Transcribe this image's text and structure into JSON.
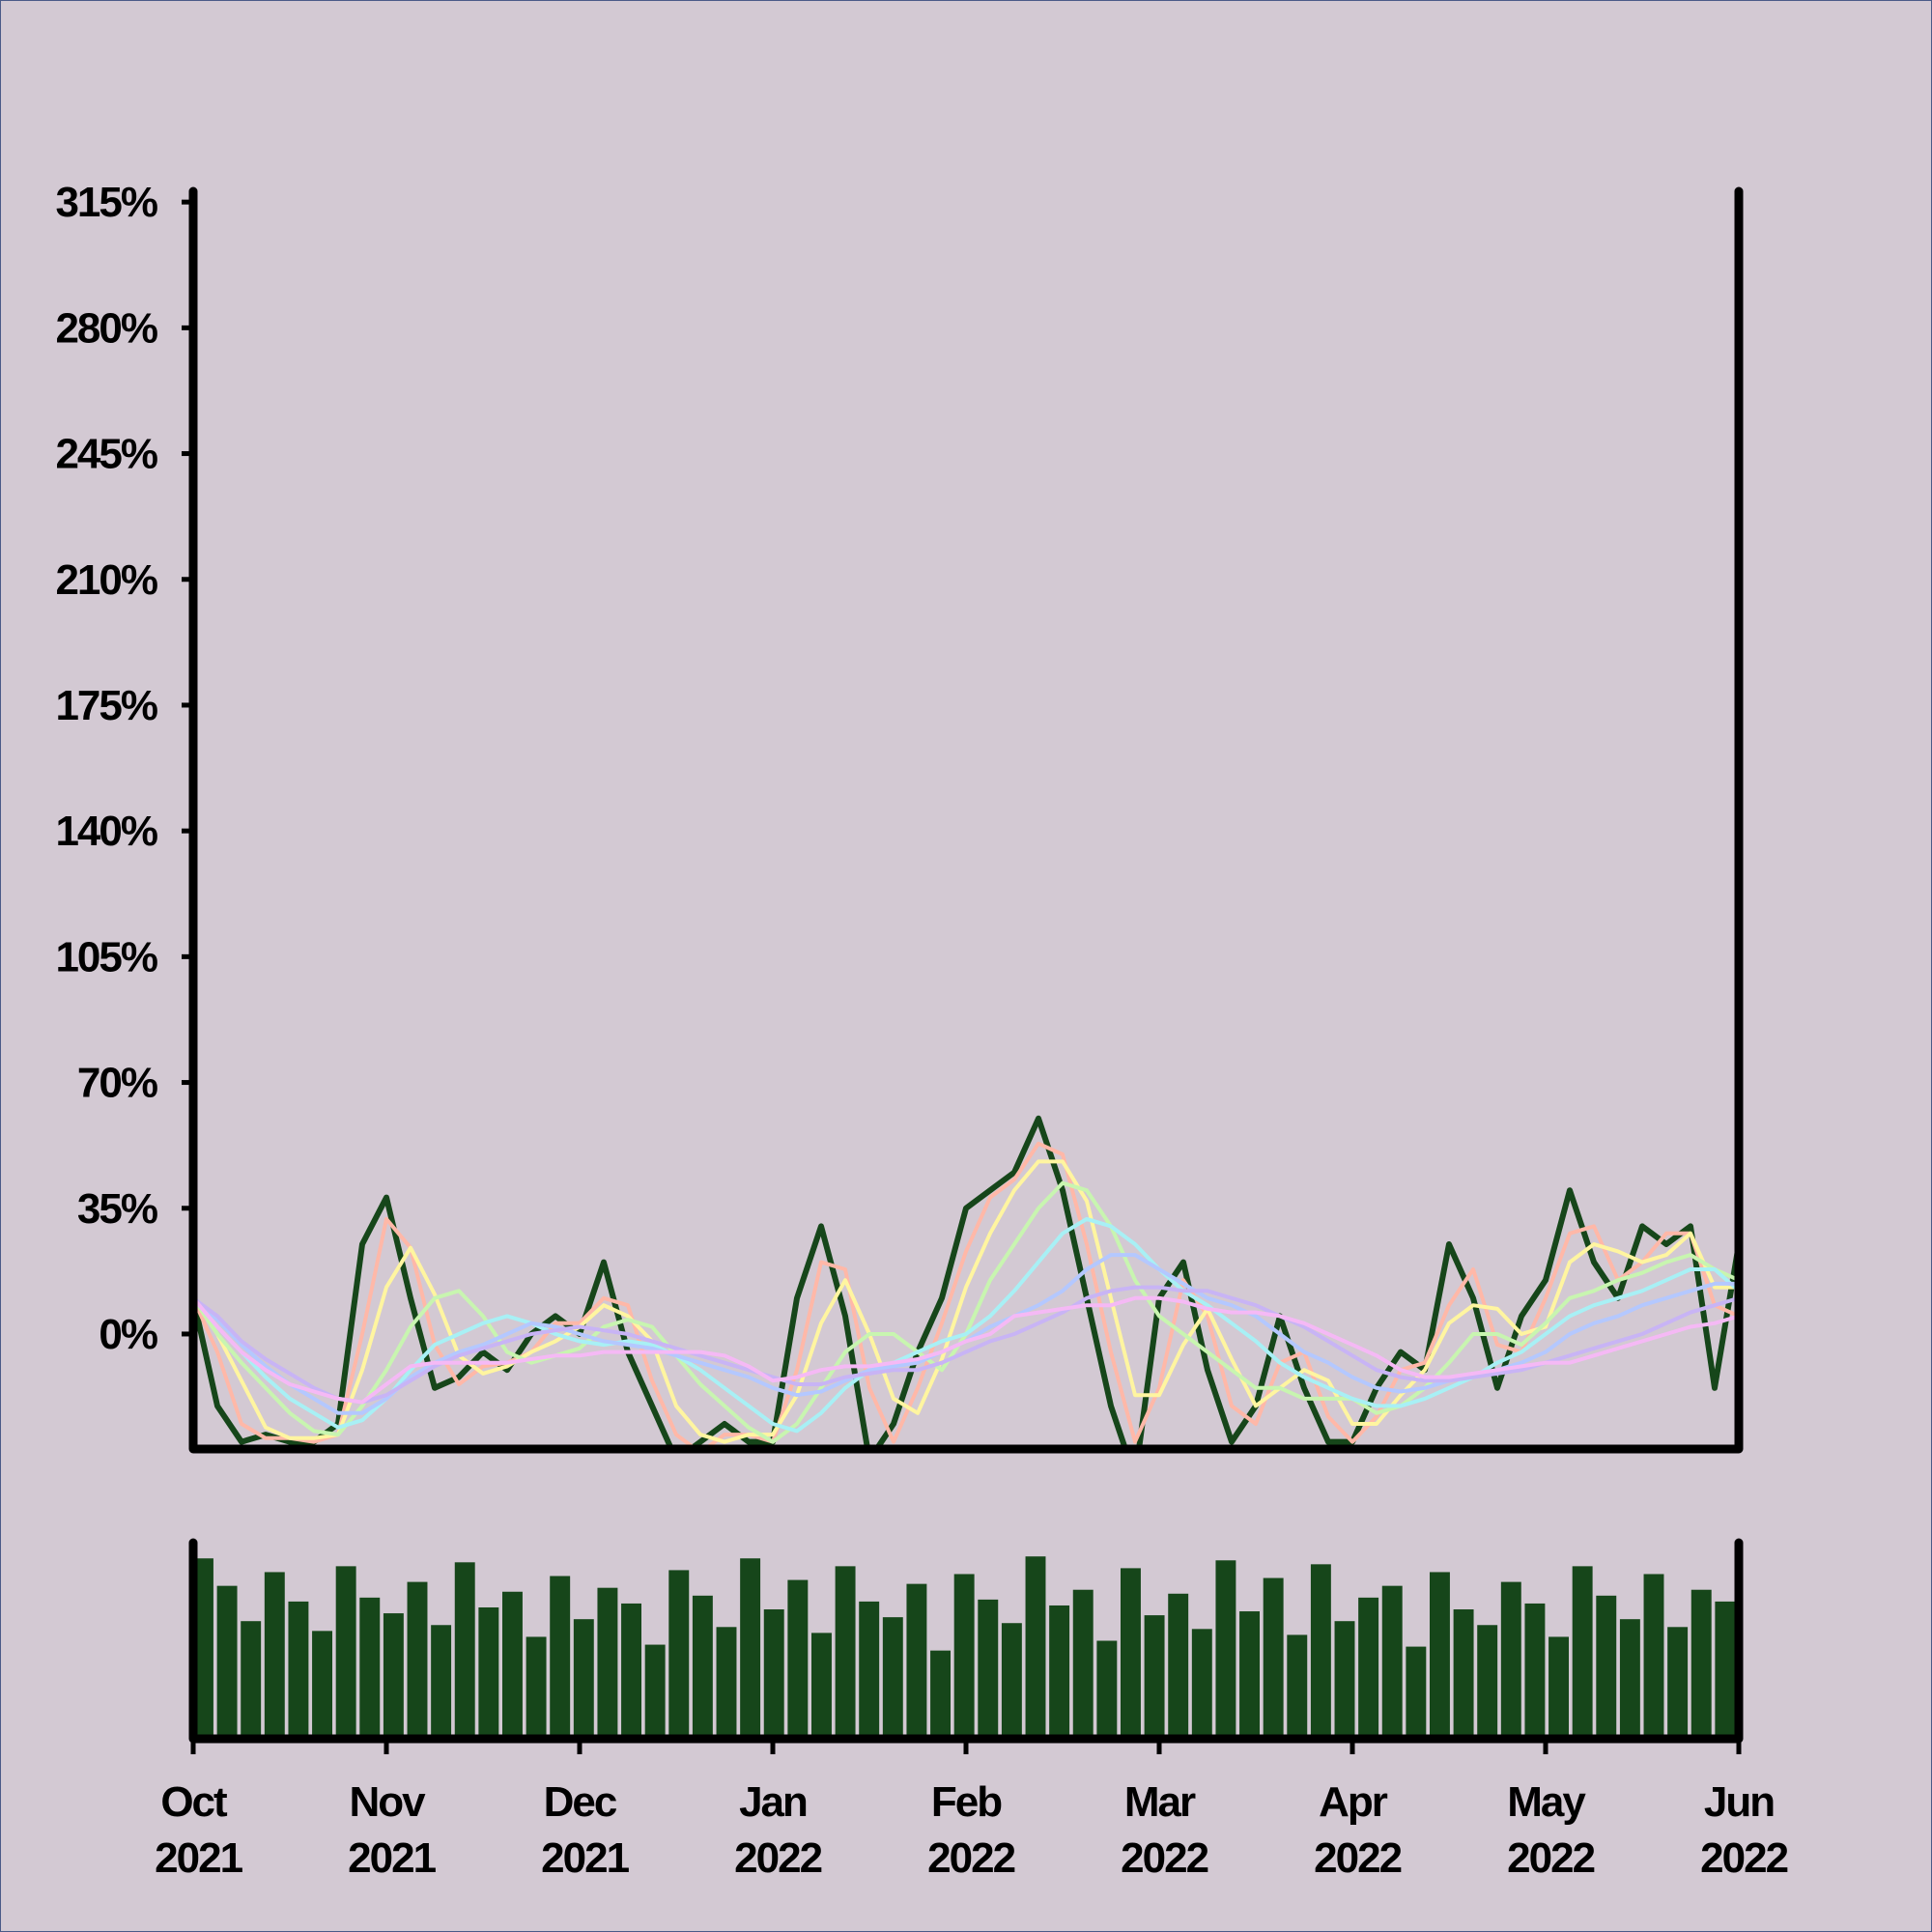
{
  "chart_data": {
    "type": "line",
    "categories": [
      "Oct 2021",
      null,
      null,
      null,
      null,
      null,
      null,
      null,
      "Nov 2021",
      null,
      null,
      null,
      null,
      null,
      null,
      null,
      "Dec 2021",
      null,
      null,
      null,
      null,
      null,
      null,
      null,
      "Jan 2022",
      null,
      null,
      null,
      null,
      null,
      null,
      null,
      "Feb 2022",
      null,
      null,
      null,
      null,
      null,
      null,
      null,
      "Mar 2022",
      null,
      null,
      null,
      null,
      null,
      null,
      null,
      "Apr 2022",
      null,
      null,
      null,
      null,
      null,
      null,
      null,
      "May 2022",
      null,
      null,
      null,
      null,
      null,
      null,
      null,
      "Jun 2022"
    ],
    "ylim": [
      -32,
      318
    ],
    "yticks": [
      {
        "value": 0,
        "label": "0%"
      },
      {
        "value": 35,
        "label": "35%"
      },
      {
        "value": 70,
        "label": "70%"
      },
      {
        "value": 105,
        "label": "105%"
      },
      {
        "value": 140,
        "label": "140%"
      },
      {
        "value": 175,
        "label": "175%"
      },
      {
        "value": 210,
        "label": "210%"
      },
      {
        "value": 245,
        "label": "245%"
      },
      {
        "value": 280,
        "label": "280%"
      },
      {
        "value": 315,
        "label": "315%"
      }
    ],
    "grid": false,
    "series": [
      {
        "color": "#ffb8a8",
        "values": [
          10,
          -5,
          -25,
          -29,
          -29,
          -30,
          -28,
          0,
          32,
          24,
          -3,
          -14,
          -9,
          -8,
          -5,
          3,
          3,
          10,
          8,
          -13,
          -28,
          -33,
          -28,
          -28,
          -30,
          -10,
          20,
          18,
          -15,
          -30,
          -15,
          3,
          23,
          38,
          43,
          53,
          50,
          25,
          -5,
          -30,
          -15,
          15,
          5,
          -20,
          -25,
          -8,
          -5,
          -23,
          -30,
          -23,
          -10,
          -8,
          8,
          18,
          -3,
          -5,
          10,
          28,
          30,
          15,
          20,
          28,
          28,
          8,
          5
        ]
      },
      {
        "color": "#fff5a0",
        "values": [
          10,
          0,
          -13,
          -26,
          -29,
          -29,
          -28,
          -10,
          13,
          24,
          11,
          -6,
          -11,
          -9,
          -5,
          -2,
          2,
          8,
          5,
          -2,
          -20,
          -28,
          -30,
          -28,
          -28,
          -17,
          3,
          15,
          0,
          -18,
          -22,
          -7,
          13,
          28,
          40,
          48,
          48,
          37,
          10,
          -17,
          -17,
          -3,
          7,
          -7,
          -20,
          -15,
          -10,
          -13,
          -25,
          -25,
          -17,
          -10,
          3,
          8,
          7,
          0,
          2,
          20,
          25,
          23,
          20,
          22,
          28,
          13,
          13
        ]
      },
      {
        "color": "#c8f5b0",
        "values": [
          10,
          0,
          -8,
          -15,
          -22,
          -27,
          -28,
          -20,
          -10,
          2,
          10,
          12,
          5,
          -5,
          -8,
          -6,
          -4,
          2,
          4,
          2,
          -6,
          -14,
          -20,
          -26,
          -30,
          -25,
          -15,
          -5,
          0,
          0,
          -5,
          -10,
          0,
          15,
          25,
          35,
          42,
          40,
          30,
          15,
          5,
          0,
          -5,
          -10,
          -15,
          -15,
          -18,
          -18,
          -18,
          -22,
          -20,
          -15,
          -8,
          0,
          0,
          -3,
          3,
          10,
          12,
          15,
          17,
          20,
          22,
          18,
          15
        ]
      },
      {
        "color": "#a8f0f5",
        "values": [
          10,
          2,
          -5,
          -12,
          -18,
          -22,
          -26,
          -24,
          -18,
          -10,
          -3,
          0,
          3,
          5,
          3,
          0,
          -2,
          -3,
          -2,
          -3,
          -6,
          -10,
          -15,
          -20,
          -25,
          -27,
          -22,
          -15,
          -10,
          -8,
          -5,
          -2,
          0,
          5,
          12,
          20,
          28,
          32,
          30,
          25,
          18,
          12,
          8,
          3,
          -2,
          -8,
          -12,
          -15,
          -18,
          -20,
          -20,
          -18,
          -15,
          -12,
          -8,
          -5,
          0,
          5,
          8,
          10,
          12,
          15,
          18,
          18,
          12
        ]
      },
      {
        "color": "#b4c8ff",
        "values": [
          10,
          4,
          -3,
          -9,
          -14,
          -18,
          -22,
          -22,
          -18,
          -12,
          -8,
          -5,
          -3,
          0,
          3,
          2,
          0,
          -2,
          -3,
          -4,
          -6,
          -8,
          -10,
          -12,
          -15,
          -17,
          -16,
          -13,
          -10,
          -9,
          -8,
          -5,
          -2,
          2,
          5,
          8,
          12,
          18,
          22,
          22,
          18,
          14,
          10,
          8,
          5,
          0,
          -5,
          -8,
          -12,
          -15,
          -16,
          -15,
          -13,
          -12,
          -10,
          -8,
          -5,
          0,
          3,
          5,
          8,
          10,
          12,
          14,
          14
        ]
      },
      {
        "color": "#c8b4f5",
        "values": [
          10,
          5,
          -2,
          -7,
          -11,
          -15,
          -18,
          -19,
          -17,
          -13,
          -9,
          -6,
          -4,
          -2,
          0,
          1,
          2,
          1,
          0,
          -2,
          -4,
          -6,
          -8,
          -10,
          -12,
          -14,
          -14,
          -12,
          -11,
          -10,
          -10,
          -8,
          -5,
          -2,
          0,
          3,
          6,
          10,
          12,
          13,
          13,
          12,
          12,
          10,
          8,
          5,
          2,
          -2,
          -6,
          -10,
          -12,
          -13,
          -13,
          -12,
          -11,
          -10,
          -8,
          -6,
          -4,
          -2,
          0,
          3,
          6,
          8,
          10
        ]
      },
      {
        "color": "#f5b9f5",
        "values": [
          10,
          2,
          -5,
          -10,
          -14,
          -16,
          -18,
          -19,
          -14,
          -9,
          -8,
          -8,
          -8,
          -8,
          -7,
          -6,
          -6,
          -5,
          -5,
          -5,
          -5,
          -5,
          -6,
          -9,
          -13,
          -12,
          -10,
          -9,
          -9,
          -8,
          -7,
          -5,
          -2,
          0,
          5,
          6,
          7,
          8,
          8,
          10,
          10,
          9,
          7,
          6,
          6,
          5,
          3,
          0,
          -3,
          -6,
          -10,
          -12,
          -12,
          -11,
          -10,
          -9,
          -8,
          -8,
          -6,
          -4,
          -2,
          0,
          2,
          3,
          5
        ]
      },
      {
        "color": "#16461a",
        "values": [
          10,
          -20,
          -30,
          -28,
          -30,
          -30,
          -25,
          25,
          38,
          10,
          -15,
          -12,
          -5,
          -10,
          0,
          5,
          0,
          20,
          -5,
          -20,
          -35,
          -30,
          -25,
          -30,
          -30,
          10,
          30,
          5,
          -35,
          -25,
          -5,
          10,
          35,
          40,
          45,
          60,
          40,
          10,
          -20,
          -40,
          10,
          20,
          -10,
          -30,
          -20,
          5,
          -15,
          -30,
          -30,
          -15,
          -5,
          -10,
          25,
          10,
          -15,
          5,
          15,
          40,
          20,
          10,
          30,
          25,
          30,
          -15,
          25
        ]
      }
    ],
    "volume": {
      "color": "#16461a",
      "ylim": [
        0,
        100
      ],
      "values": [
        92,
        78,
        60,
        85,
        70,
        55,
        88,
        72,
        64,
        80,
        58,
        90,
        67,
        75,
        52,
        83,
        61,
        77,
        69,
        48,
        86,
        73,
        57,
        92,
        66,
        81,
        54,
        88,
        70,
        62,
        79,
        45,
        84,
        71,
        59,
        93,
        68,
        76,
        50,
        87,
        63,
        74,
        56,
        91,
        65,
        82,
        53,
        89,
        60,
        72,
        78,
        47,
        85,
        66,
        58,
        80,
        69,
        52,
        88,
        73,
        61,
        84,
        57,
        76,
        70
      ]
    }
  }
}
